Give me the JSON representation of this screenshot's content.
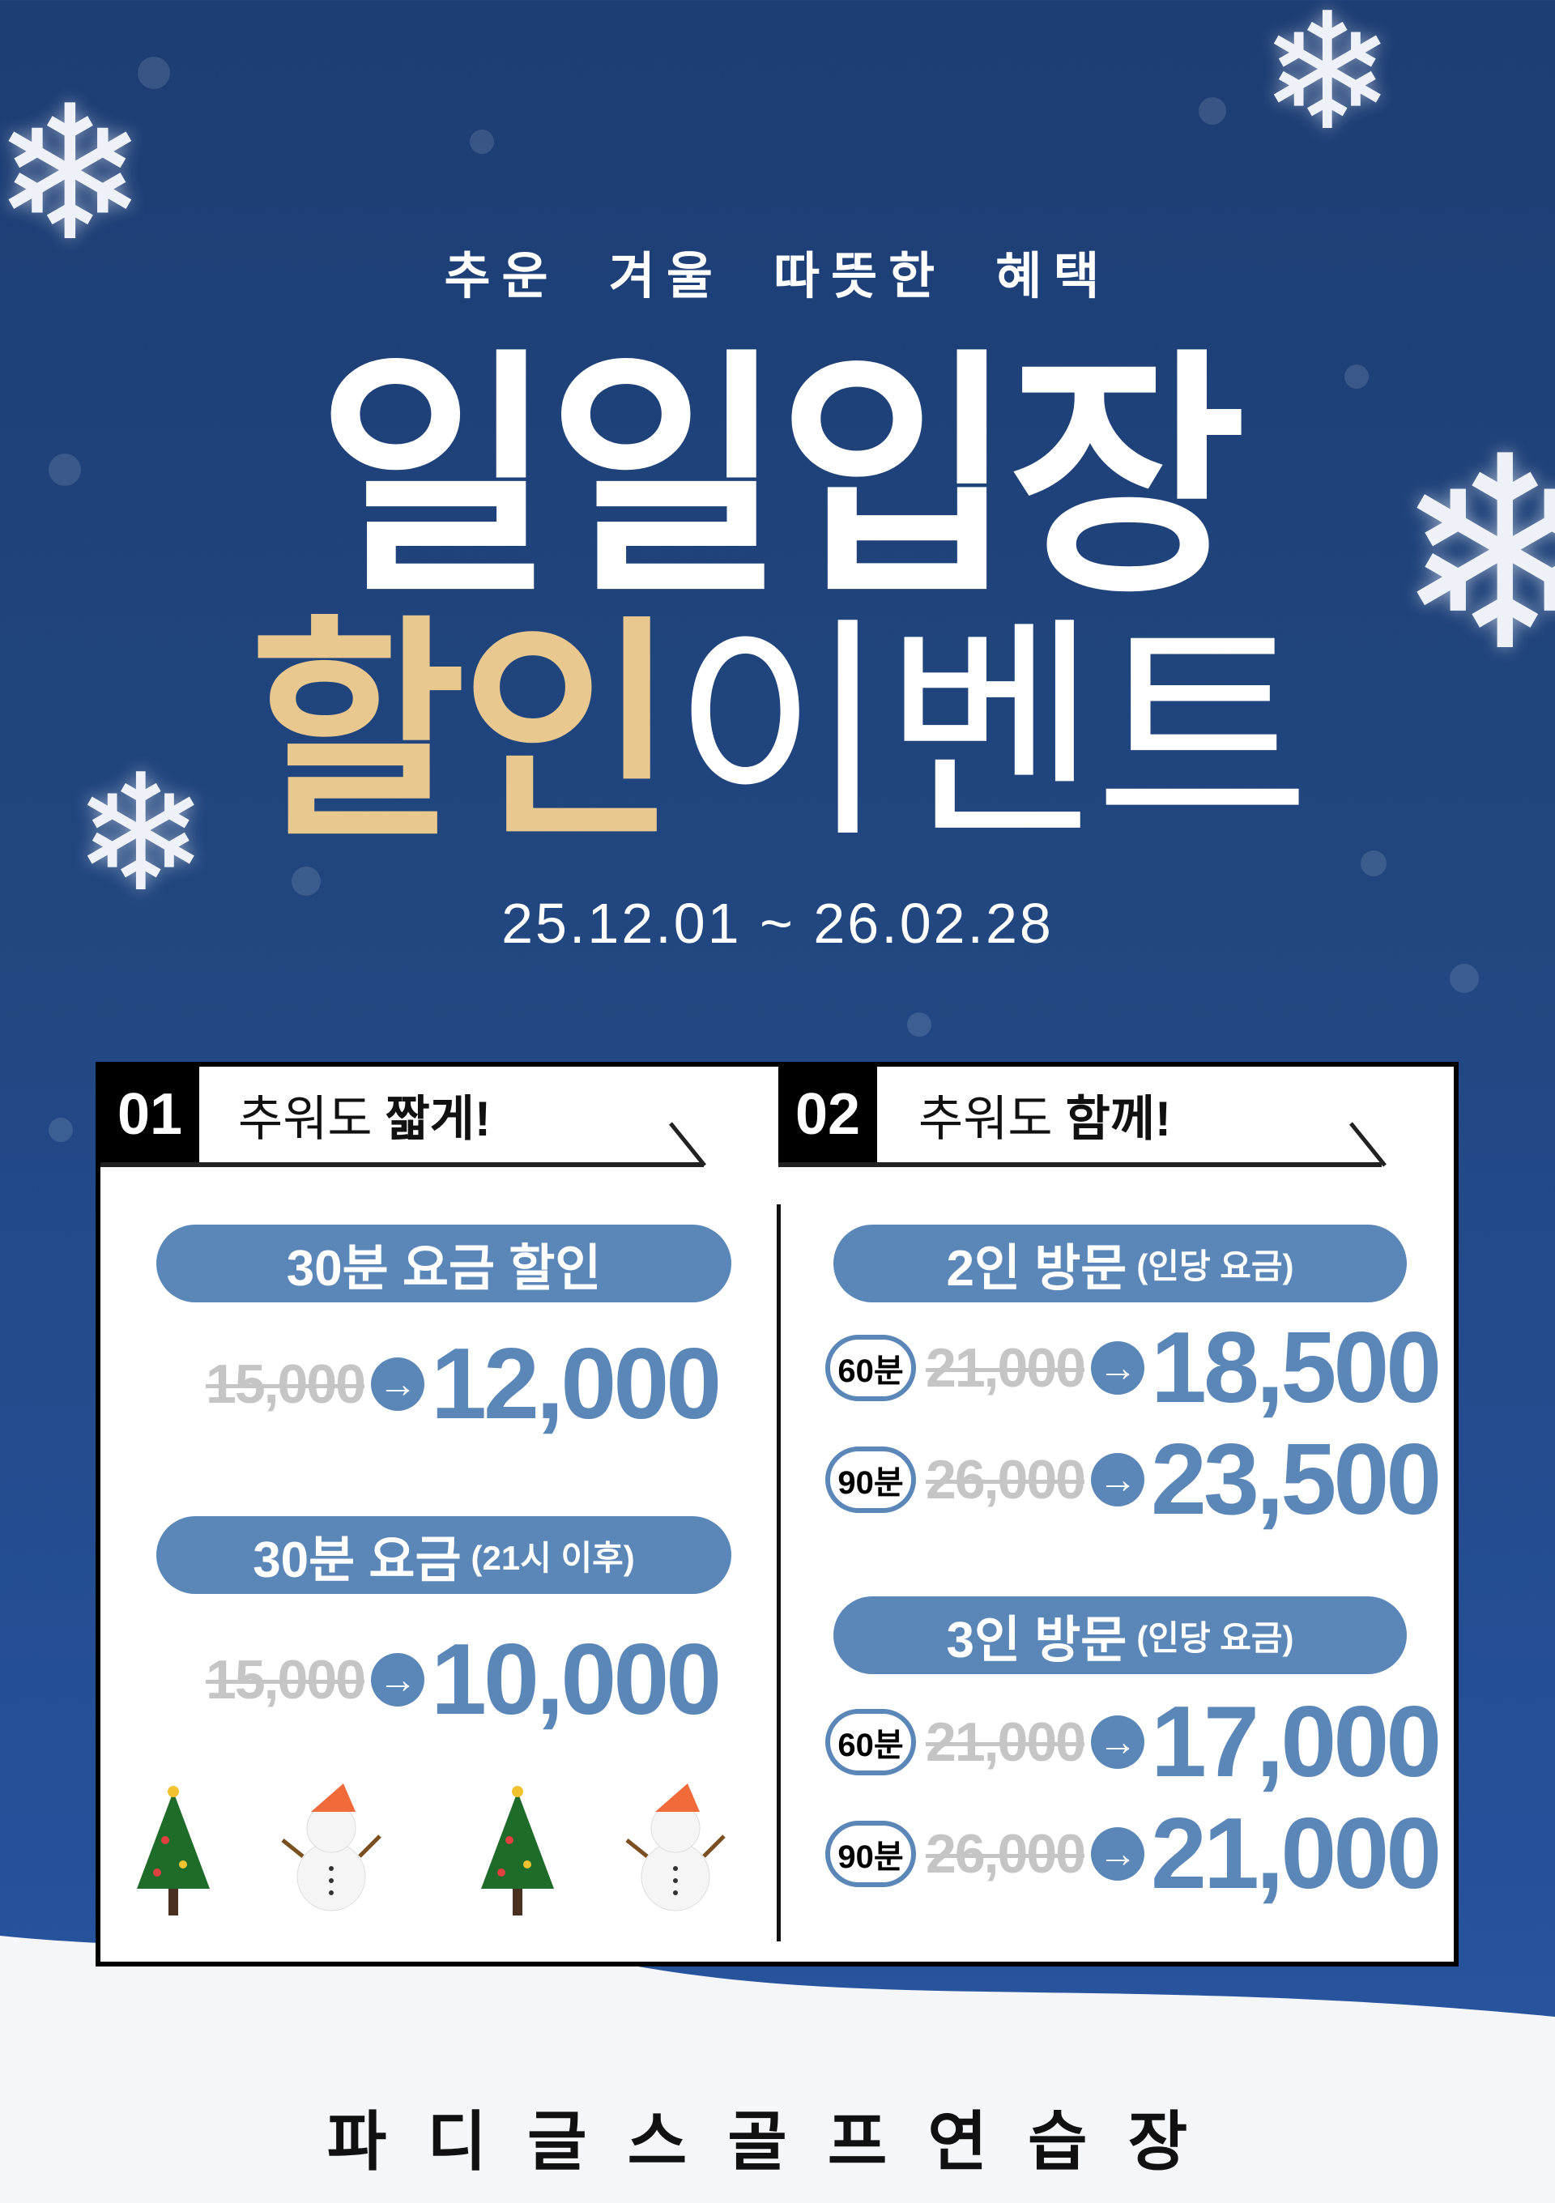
{
  "header": {
    "subtitle": "추운 겨울 따뜻한 혜택",
    "title_line1": "일일입장",
    "title_line2_highlight": "할인",
    "title_line2_rest": "이벤트",
    "date_range": "25.12.01 ~ 26.02.28"
  },
  "colors": {
    "background": "#1e3f77",
    "accent_gold": "#e8c88f",
    "price_blue": "#5b87b8",
    "struck_gray": "#c5c5c5"
  },
  "sections": [
    {
      "number": "01",
      "label_light": "추워도",
      "label_bold": "짧게!",
      "offers": [
        {
          "title": "30분 요금 할인",
          "note": "",
          "old_price": "15,000",
          "new_price": "12,000"
        },
        {
          "title": "30분 요금",
          "note": "(21시 이후)",
          "old_price": "15,000",
          "new_price": "10,000"
        }
      ],
      "decorations": [
        "tree-icon",
        "snowman-icon",
        "tree-icon",
        "snowman-icon"
      ]
    },
    {
      "number": "02",
      "label_light": "추워도",
      "label_bold": "함께!",
      "groups": [
        {
          "title": "2인 방문",
          "note": "(인당 요금)",
          "rows": [
            {
              "duration": "60분",
              "old_price": "21,000",
              "new_price": "18,500"
            },
            {
              "duration": "90분",
              "old_price": "26,000",
              "new_price": "23,500"
            }
          ]
        },
        {
          "title": "3인 방문",
          "note": "(인당 요금)",
          "rows": [
            {
              "duration": "60분",
              "old_price": "21,000",
              "new_price": "17,000"
            },
            {
              "duration": "90분",
              "old_price": "26,000",
              "new_price": "21,000"
            }
          ]
        }
      ]
    }
  ],
  "arrow_glyph": "→",
  "footer": {
    "name": "파디글스골프연습장"
  }
}
